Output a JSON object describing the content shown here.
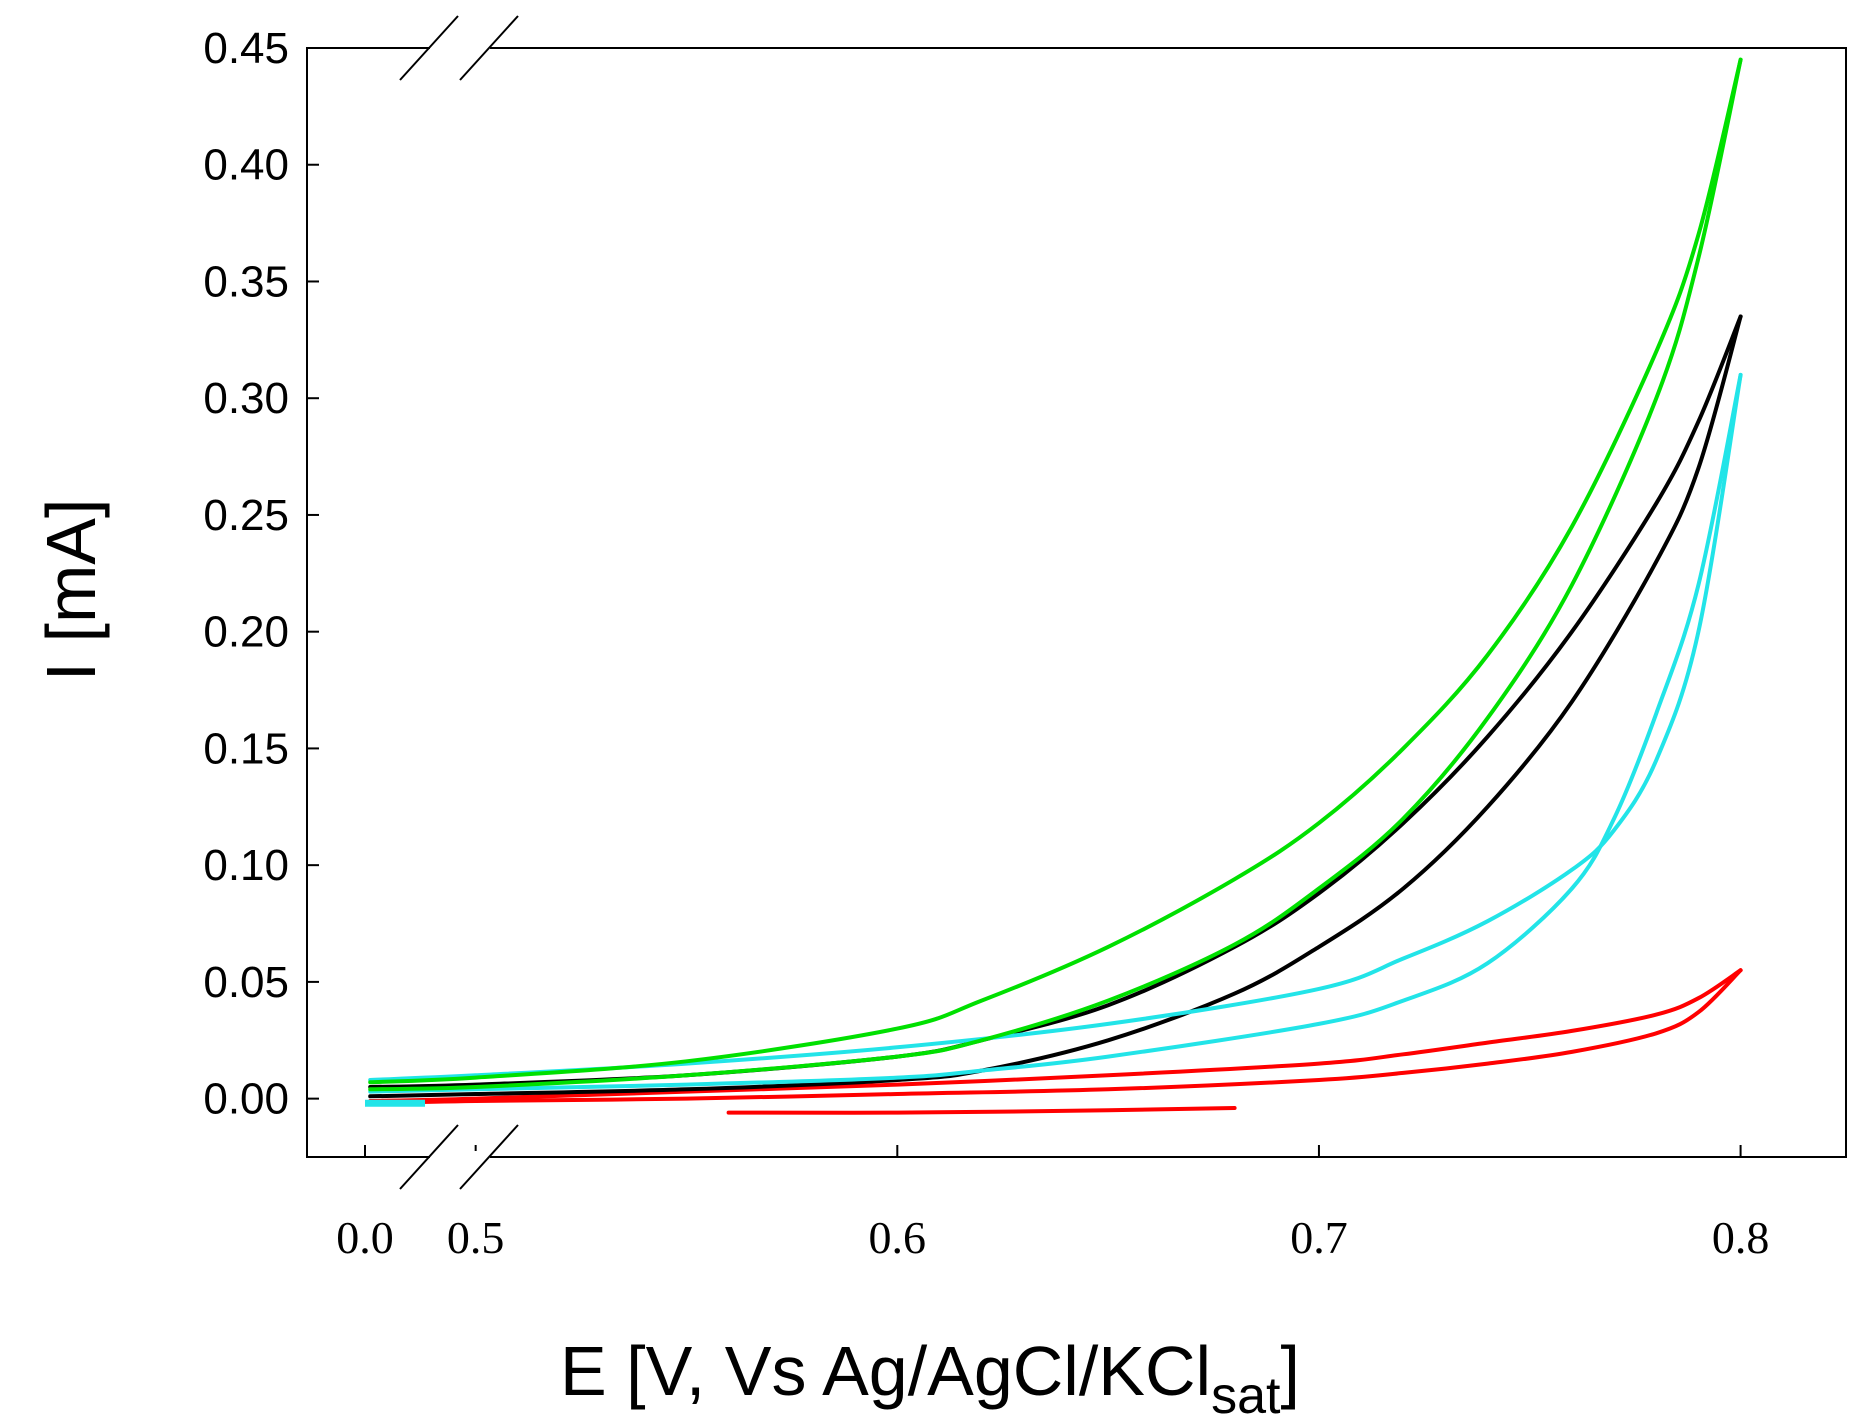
{
  "chart_data": {
    "type": "line",
    "title": "",
    "xlabel_main": "E [V, Vs Ag/AgCl/KCl",
    "xlabel_sub": "sat",
    "xlabel_close": "]",
    "ylabel": "I [mA]",
    "xlim": [
      0.46,
      0.825
    ],
    "ylim": [
      -0.025,
      0.45
    ],
    "axis_break": "between 0.0 and 0.5 on the x-axis",
    "x_tick_labels": [
      "0.0",
      "0.5",
      "0.6",
      "0.7",
      "0.8"
    ],
    "y_tick_labels": [
      "0.00",
      "0.05",
      "0.10",
      "0.15",
      "0.20",
      "0.25",
      "0.30",
      "0.35",
      "0.40",
      "0.45"
    ],
    "grid": false,
    "series": [
      {
        "name": "red",
        "color": "#ff0000",
        "forward": {
          "x": [
            0.475,
            0.5,
            0.55,
            0.6,
            0.65,
            0.7,
            0.72,
            0.74,
            0.76,
            0.78,
            0.79,
            0.8
          ],
          "y": [
            -0.002,
            -0.001,
            0.0,
            0.002,
            0.004,
            0.008,
            0.011,
            0.015,
            0.02,
            0.028,
            0.037,
            0.055
          ]
        },
        "backward": {
          "x": [
            0.8,
            0.79,
            0.78,
            0.76,
            0.74,
            0.72,
            0.7,
            0.65,
            0.6,
            0.55,
            0.5,
            0.475
          ],
          "y": [
            0.055,
            0.043,
            0.036,
            0.029,
            0.024,
            0.019,
            0.015,
            0.01,
            0.006,
            0.003,
            0.0,
            -0.001
          ]
        },
        "extra": {
          "x": [
            0.56,
            0.6,
            0.65,
            0.68
          ],
          "y": [
            -0.006,
            -0.006,
            -0.005,
            -0.004
          ]
        }
      },
      {
        "name": "black",
        "color": "#000000",
        "forward": {
          "x": [
            0.475,
            0.5,
            0.55,
            0.6,
            0.62,
            0.65,
            0.68,
            0.7,
            0.72,
            0.74,
            0.76,
            0.78,
            0.79,
            0.8
          ],
          "y": [
            0.001,
            0.002,
            0.004,
            0.008,
            0.012,
            0.025,
            0.045,
            0.065,
            0.09,
            0.125,
            0.17,
            0.23,
            0.27,
            0.335
          ]
        },
        "backward": {
          "x": [
            0.8,
            0.79,
            0.78,
            0.76,
            0.74,
            0.72,
            0.7,
            0.68,
            0.65,
            0.62,
            0.6,
            0.55,
            0.5,
            0.475
          ],
          "y": [
            0.335,
            0.29,
            0.255,
            0.2,
            0.155,
            0.118,
            0.088,
            0.065,
            0.04,
            0.025,
            0.018,
            0.01,
            0.006,
            0.005
          ]
        }
      },
      {
        "name": "green",
        "color": "#00e000",
        "forward": {
          "x": [
            0.475,
            0.5,
            0.55,
            0.6,
            0.62,
            0.65,
            0.68,
            0.7,
            0.72,
            0.74,
            0.76,
            0.78,
            0.79,
            0.8
          ],
          "y": [
            0.004,
            0.005,
            0.01,
            0.018,
            0.025,
            0.042,
            0.066,
            0.09,
            0.12,
            0.163,
            0.22,
            0.3,
            0.36,
            0.445
          ]
        },
        "backward": {
          "x": [
            0.8,
            0.79,
            0.78,
            0.76,
            0.74,
            0.72,
            0.7,
            0.68,
            0.65,
            0.62,
            0.6,
            0.55,
            0.5,
            0.475
          ],
          "y": [
            0.445,
            0.37,
            0.32,
            0.245,
            0.19,
            0.15,
            0.118,
            0.094,
            0.065,
            0.042,
            0.03,
            0.016,
            0.009,
            0.007
          ]
        }
      },
      {
        "name": "cyan",
        "color": "#22e4e8",
        "forward": {
          "x": [
            0.475,
            0.5,
            0.55,
            0.6,
            0.62,
            0.65,
            0.7,
            0.72,
            0.74,
            0.76,
            0.77,
            0.78,
            0.79,
            0.8
          ],
          "y": [
            0.003,
            0.004,
            0.006,
            0.009,
            0.012,
            0.018,
            0.032,
            0.042,
            0.058,
            0.09,
            0.12,
            0.165,
            0.22,
            0.31
          ]
        },
        "backward": {
          "x": [
            0.8,
            0.79,
            0.78,
            0.77,
            0.76,
            0.74,
            0.72,
            0.7,
            0.65,
            0.6,
            0.55,
            0.5,
            0.475
          ],
          "y": [
            0.31,
            0.2,
            0.145,
            0.115,
            0.098,
            0.076,
            0.06,
            0.047,
            0.032,
            0.022,
            0.015,
            0.01,
            0.008
          ]
        },
        "break_segment": {
          "x_label_position": "0.0",
          "y": -0.002
        }
      }
    ]
  }
}
